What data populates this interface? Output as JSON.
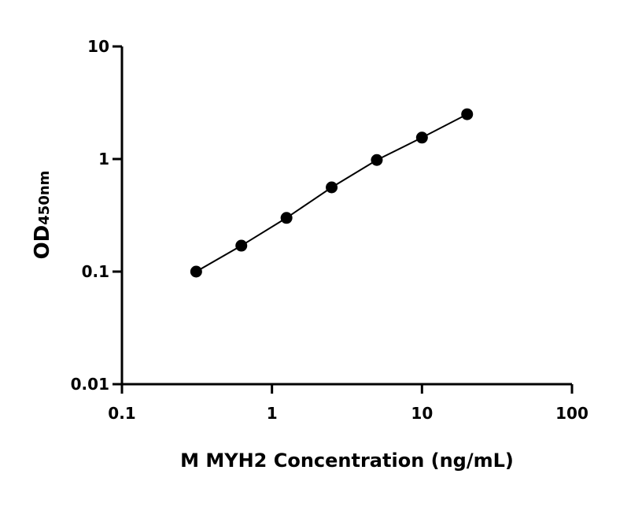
{
  "chart_data": {
    "type": "scatter",
    "xlabel": "M MYH2 Concentration (ng/mL)",
    "ylabel_main": "OD",
    "ylabel_sub": "450nm",
    "x_scale": "log",
    "y_scale": "log",
    "xlim": [
      0.1,
      100
    ],
    "ylim": [
      0.01,
      10
    ],
    "x_ticks": [
      "0.1",
      "1",
      "10",
      "100"
    ],
    "y_ticks": [
      "0.01",
      "0.1",
      "1",
      "10"
    ],
    "grid": false,
    "fit_line": true,
    "series": [
      {
        "x": [
          0.3125,
          0.625,
          1.25,
          2.5,
          5,
          10,
          20
        ],
        "y": [
          0.1,
          0.17,
          0.3,
          0.56,
          0.98,
          1.55,
          2.5
        ]
      }
    ],
    "colors": {
      "marker": "#000000",
      "line": "#000000"
    }
  }
}
